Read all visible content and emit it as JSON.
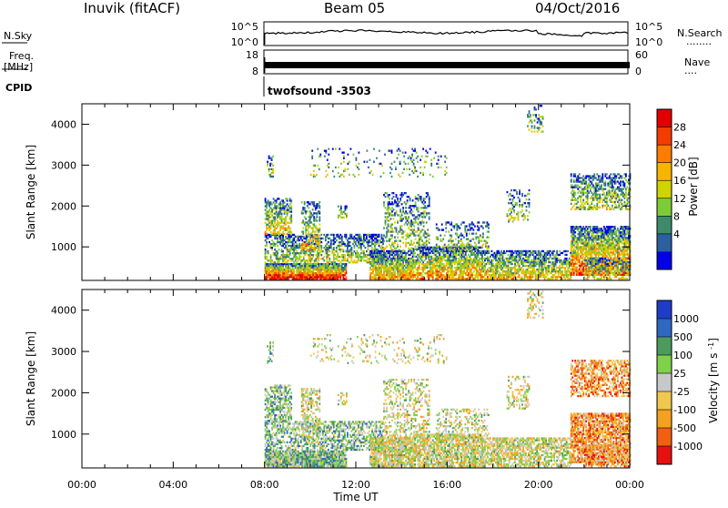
{
  "header": {
    "station": "Inuvik (fitACF)",
    "beam": "Beam 05",
    "date": "04/Oct/2016"
  },
  "summary_panels": {
    "nsky": {
      "left_label": "N.Sky",
      "left_ticks": [
        "10^5",
        "10^0"
      ],
      "right_ticks": [
        "10^5",
        "10^0"
      ],
      "right_label": "N.Search",
      "right_dots": "........"
    },
    "freq": {
      "left_label_line1": "Freq.",
      "left_label_line2": "[MHz]",
      "left_ticks": [
        "18",
        "8"
      ],
      "right_ticks": [
        "60",
        "0"
      ],
      "right_label": "Nave",
      "right_dots": "...."
    },
    "cpid": {
      "label": "CPID",
      "value": "twofsound -3503"
    }
  },
  "chart_data": [
    {
      "type": "heatmap",
      "quantity": "power",
      "title": "",
      "xlabel": "",
      "ylabel": "Slant Range [km]",
      "ylim": [
        180,
        4500
      ],
      "y_ticks": [
        1000,
        2000,
        3000,
        4000
      ],
      "xlim_hours": [
        0,
        24
      ],
      "colorbar": {
        "label": "Power [dB]",
        "ticks": [
          "28",
          "24",
          "20",
          "16",
          "12",
          "8",
          "4"
        ],
        "colors": [
          "#e10000",
          "#f53c00",
          "#ff7c00",
          "#f7b400",
          "#cfd400",
          "#7ecb39",
          "#3c8c6c",
          "#2b5f9e",
          "#0000e6"
        ]
      },
      "data_start_hour": 8.0
    },
    {
      "type": "heatmap",
      "quantity": "velocity",
      "title": "",
      "xlabel": "Time UT",
      "ylabel": "Slant Range [km]",
      "ylim": [
        180,
        4500
      ],
      "y_ticks": [
        1000,
        2000,
        3000,
        4000
      ],
      "x_ticks": [
        "00:00",
        "04:00",
        "08:00",
        "12:00",
        "16:00",
        "20:00",
        "00:00"
      ],
      "xlim_hours": [
        0,
        24
      ],
      "colorbar": {
        "label": "Velocity [m s^-1]",
        "ticks": [
          "1000",
          "500",
          "100",
          "25",
          "-25",
          "-100",
          "-500",
          "-1000"
        ],
        "colors": [
          "#1f3cc8",
          "#2f68c0",
          "#4d9a5e",
          "#7fd04a",
          "#c8c8c8",
          "#f0c850",
          "#f5a020",
          "#f06010",
          "#e61010"
        ]
      },
      "data_start_hour": 8.0
    }
  ]
}
